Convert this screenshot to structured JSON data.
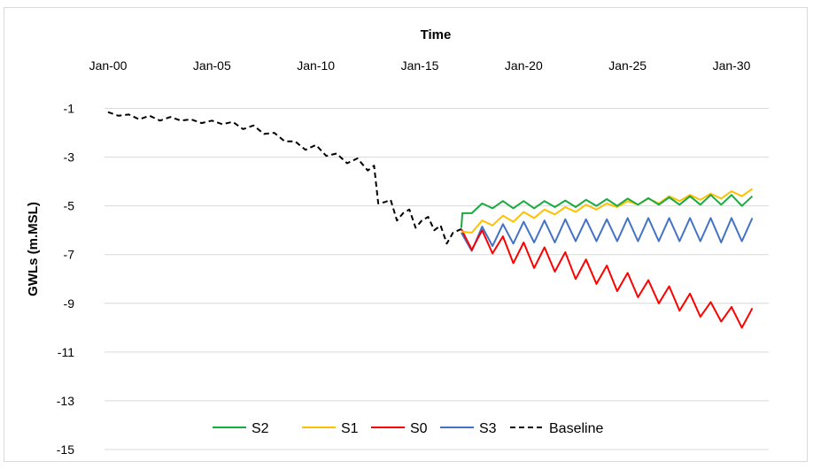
{
  "chart_data": {
    "type": "line",
    "xlabel": "Time",
    "ylabel": "GWLs (m.MSL)",
    "x_axis_position": "top",
    "x_ticks": [
      "Jan-00",
      "Jan-05",
      "Jan-10",
      "Jan-15",
      "Jan-20",
      "Jan-25",
      "Jan-30"
    ],
    "x_tick_years": [
      0,
      5,
      10,
      15,
      20,
      25,
      30
    ],
    "xlim_years": [
      0,
      31.3
    ],
    "ylim": [
      -15,
      0
    ],
    "y_ticks": [
      -1,
      -3,
      -5,
      -7,
      -9,
      -11,
      -13,
      -15
    ],
    "grid": "horizontal",
    "legend_position": "bottom",
    "series": [
      {
        "name": "S2",
        "color": "#1aab40",
        "style": "solid",
        "x": [
          17.0,
          17.05,
          17.5,
          18.0,
          18.5,
          19.0,
          19.5,
          20.0,
          20.5,
          21.0,
          21.5,
          22.0,
          22.5,
          23.0,
          23.5,
          24.0,
          24.5,
          25.0,
          25.5,
          26.0,
          26.5,
          27.0,
          27.5,
          28.0,
          28.5,
          29.0,
          29.5,
          30.0,
          30.5,
          31.0
        ],
        "y": [
          -5.9,
          -5.3,
          -5.3,
          -4.9,
          -5.1,
          -4.8,
          -5.1,
          -4.8,
          -5.1,
          -4.8,
          -5.05,
          -4.78,
          -5.05,
          -4.75,
          -5.0,
          -4.72,
          -5.0,
          -4.7,
          -4.95,
          -4.68,
          -4.95,
          -4.65,
          -4.95,
          -4.6,
          -4.95,
          -4.55,
          -4.95,
          -4.55,
          -5.0,
          -4.6
        ]
      },
      {
        "name": "S1",
        "color": "#ffc000",
        "style": "solid",
        "x": [
          17.0,
          17.5,
          18.0,
          18.5,
          19.0,
          19.5,
          20.0,
          20.5,
          21.0,
          21.5,
          22.0,
          22.5,
          23.0,
          23.5,
          24.0,
          24.5,
          25.0,
          25.5,
          26.0,
          26.5,
          27.0,
          27.5,
          28.0,
          28.5,
          29.0,
          29.5,
          30.0,
          30.5,
          31.0
        ],
        "y": [
          -6.05,
          -6.1,
          -5.6,
          -5.8,
          -5.4,
          -5.65,
          -5.25,
          -5.5,
          -5.15,
          -5.35,
          -5.05,
          -5.25,
          -4.95,
          -5.15,
          -4.9,
          -5.05,
          -4.8,
          -4.95,
          -4.7,
          -4.9,
          -4.6,
          -4.8,
          -4.55,
          -4.75,
          -4.5,
          -4.7,
          -4.4,
          -4.6,
          -4.3
        ]
      },
      {
        "name": "S0",
        "color": "#ff0000",
        "style": "solid",
        "x": [
          17.0,
          17.5,
          18.0,
          18.5,
          19.0,
          19.5,
          20.0,
          20.5,
          21.0,
          21.5,
          22.0,
          22.5,
          23.0,
          23.5,
          24.0,
          24.5,
          25.0,
          25.5,
          26.0,
          26.5,
          27.0,
          27.5,
          28.0,
          28.5,
          29.0,
          29.5,
          30.0,
          30.5,
          31.0
        ],
        "y": [
          -5.95,
          -6.8,
          -6.0,
          -6.95,
          -6.25,
          -7.35,
          -6.5,
          -7.55,
          -6.7,
          -7.7,
          -6.9,
          -8.0,
          -7.2,
          -8.2,
          -7.45,
          -8.5,
          -7.75,
          -8.75,
          -8.05,
          -9.0,
          -8.3,
          -9.3,
          -8.6,
          -9.55,
          -8.95,
          -9.75,
          -9.15,
          -10.0,
          -9.2
        ]
      },
      {
        "name": "S3",
        "color": "#4472c4",
        "style": "solid",
        "x": [
          17.0,
          17.5,
          18.0,
          18.5,
          19.0,
          19.5,
          20.0,
          20.5,
          21.0,
          21.5,
          22.0,
          22.5,
          23.0,
          23.5,
          24.0,
          24.5,
          25.0,
          25.5,
          26.0,
          26.5,
          27.0,
          27.5,
          28.0,
          28.5,
          29.0,
          29.5,
          30.0,
          30.5,
          31.0
        ],
        "y": [
          -6.1,
          -6.85,
          -5.85,
          -6.65,
          -5.75,
          -6.55,
          -5.65,
          -6.5,
          -5.6,
          -6.5,
          -5.55,
          -6.45,
          -5.55,
          -6.45,
          -5.55,
          -6.45,
          -5.5,
          -6.45,
          -5.5,
          -6.45,
          -5.5,
          -6.45,
          -5.5,
          -6.45,
          -5.5,
          -6.5,
          -5.5,
          -6.45,
          -5.5
        ]
      },
      {
        "name": "Baseline",
        "color": "#000000",
        "style": "dashed",
        "x": [
          0.0,
          0.5,
          1.0,
          1.5,
          2.0,
          2.5,
          3.0,
          3.5,
          4.0,
          4.5,
          5.0,
          5.5,
          6.0,
          6.5,
          7.0,
          7.5,
          8.0,
          8.5,
          9.0,
          9.5,
          10.0,
          10.5,
          11.0,
          11.5,
          12.0,
          12.5,
          12.8,
          13.0,
          13.3,
          13.6,
          13.9,
          14.2,
          14.5,
          14.8,
          15.1,
          15.4,
          15.7,
          16.0,
          16.3,
          16.6,
          17.0
        ],
        "y": [
          -1.15,
          -1.3,
          -1.25,
          -1.45,
          -1.3,
          -1.5,
          -1.35,
          -1.5,
          -1.45,
          -1.6,
          -1.5,
          -1.65,
          -1.55,
          -1.85,
          -1.7,
          -2.05,
          -2.0,
          -2.35,
          -2.35,
          -2.7,
          -2.5,
          -2.95,
          -2.85,
          -3.25,
          -3.05,
          -3.55,
          -3.35,
          -4.9,
          -4.85,
          -4.75,
          -5.6,
          -5.3,
          -5.15,
          -5.9,
          -5.6,
          -5.45,
          -6.0,
          -5.8,
          -6.55,
          -6.1,
          -5.95
        ]
      }
    ]
  }
}
